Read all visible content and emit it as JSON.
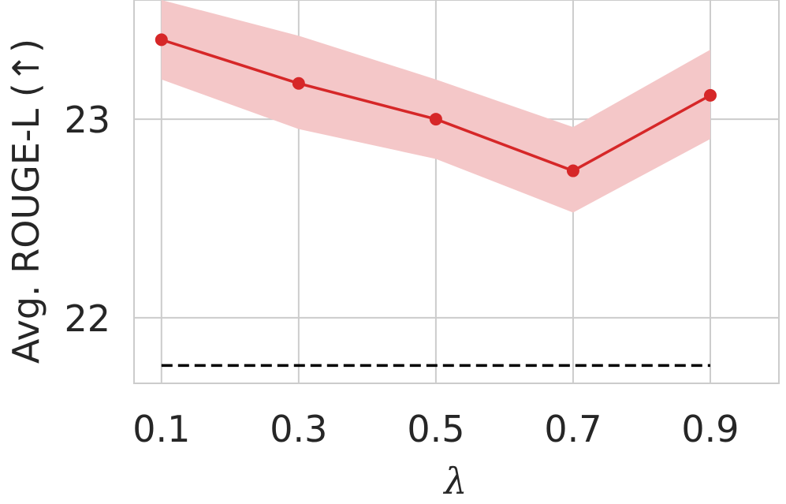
{
  "chart_data": {
    "type": "line",
    "x": [
      0.1,
      0.3,
      0.5,
      0.7,
      0.9
    ],
    "xticks": [
      "0.1",
      "0.3",
      "0.5",
      "0.7",
      "0.9"
    ],
    "yticks": [
      22,
      23
    ],
    "xlabel": "λ",
    "ylabel": "Avg. ROUGE-L (↑)",
    "xlim": [
      0.06,
      1.0
    ],
    "ylim": [
      21.67,
      23.6
    ],
    "grid": true,
    "series": [
      {
        "values": [
          23.4,
          23.18,
          23.0,
          22.74,
          23.12
        ],
        "lower": [
          23.2,
          22.95,
          22.8,
          22.53,
          22.9
        ],
        "upper": [
          23.6,
          23.42,
          23.2,
          22.96,
          23.35
        ],
        "color": "#d62728",
        "band_color": "#f4c7c8",
        "marker": "circle"
      }
    ],
    "baseline": {
      "value": 21.76,
      "style": "dashed",
      "color": "#000000"
    }
  }
}
